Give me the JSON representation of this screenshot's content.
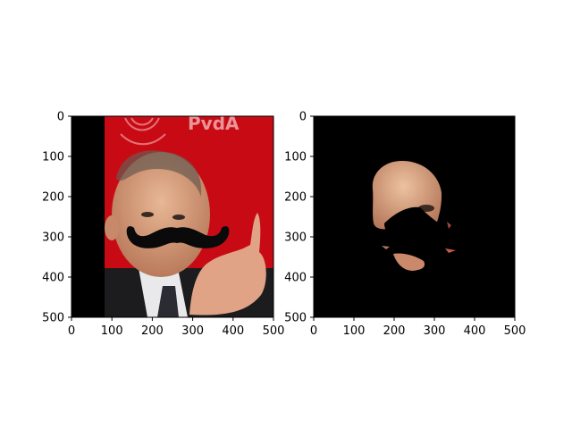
{
  "figure": {
    "background": "#ffffff"
  },
  "chart_data": [
    {
      "type": "image",
      "content": "photo of a man with a black cartoon mustache overlay, red background",
      "xlim": [
        0,
        500
      ],
      "ylim": [
        500,
        0
      ],
      "xticks": [
        0,
        100,
        200,
        300,
        400,
        500
      ],
      "yticks": [
        0,
        100,
        200,
        300,
        400,
        500
      ],
      "xtick_labels": [
        "0",
        "100",
        "200",
        "300",
        "400",
        "500"
      ],
      "ytick_labels": [
        "0",
        "100",
        "200",
        "300",
        "400",
        "500"
      ],
      "colors": {
        "background": "#c80a14",
        "padding": "#000000",
        "mustache": "#0a0a0a"
      }
    },
    {
      "type": "image",
      "content": "segmentation mask output: black background, skin region of the face visible, mustache area removed",
      "xlim": [
        0,
        500
      ],
      "ylim": [
        500,
        0
      ],
      "xticks": [
        0,
        100,
        200,
        300,
        400,
        500
      ],
      "yticks": [
        0,
        100,
        200,
        300,
        400,
        500
      ],
      "xtick_labels": [
        "0",
        "100",
        "200",
        "300",
        "400",
        "500"
      ],
      "ytick_labels": [
        "0",
        "100",
        "200",
        "300",
        "400",
        "500"
      ],
      "colors": {
        "background": "#000000",
        "skin": "#d9a07a"
      }
    }
  ]
}
